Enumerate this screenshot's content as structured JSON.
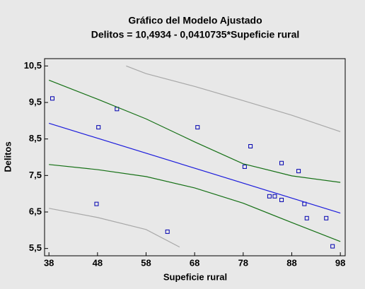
{
  "chart_data": {
    "type": "scatter",
    "title": "Gráfico del Modelo Ajustado",
    "subtitle": "Delitos = 10,4934 - 0,0410735*Supeficie rural",
    "x_label": "Supeficie rural",
    "y_label": "Delitos",
    "xlim": [
      37.1,
      99
    ],
    "ylim": [
      5.3,
      10.7
    ],
    "xticks": [
      38,
      48,
      58,
      68,
      78,
      88,
      98
    ],
    "yticks": [
      {
        "value": 5.5,
        "label": "5,5"
      },
      {
        "value": 6.5,
        "label": "6,5"
      },
      {
        "value": 7.5,
        "label": "7,5"
      },
      {
        "value": 8.5,
        "label": "8,5"
      },
      {
        "value": 9.5,
        "label": "9,5"
      },
      {
        "value": 10.5,
        "label": "10,5"
      }
    ],
    "series": [
      {
        "mark": "square",
        "color": "#0000b0",
        "x": [
          38.7,
          48.2,
          52.0,
          68.6,
          79.5,
          78.3,
          85.9,
          89.4,
          47.8,
          83.4,
          84.5,
          85.9,
          90.6,
          91.1,
          95.1,
          62.4,
          96.4
        ],
        "values": [
          9.61,
          8.82,
          9.32,
          8.82,
          8.3,
          7.74,
          7.84,
          7.62,
          6.72,
          6.93,
          6.93,
          6.83,
          6.72,
          6.33,
          6.33,
          5.96,
          5.56
        ]
      },
      {
        "mark": "line",
        "color": "#1c1cdc",
        "x": [
          38,
          98
        ],
        "values": [
          8.93,
          6.47
        ]
      },
      {
        "mark": "line",
        "color": "#157015",
        "x": [
          38,
          48,
          58,
          68,
          78,
          88,
          98
        ],
        "values": [
          10.11,
          9.59,
          9.05,
          8.42,
          7.82,
          7.49,
          7.31
        ]
      },
      {
        "mark": "line",
        "color": "#157015",
        "x": [
          38,
          48,
          58,
          68,
          78,
          88,
          98
        ],
        "values": [
          7.8,
          7.66,
          7.47,
          7.16,
          6.74,
          6.21,
          5.69
        ]
      },
      {
        "mark": "line",
        "color": "#a8a8a8",
        "x": [
          53.9,
          58,
          68,
          78,
          88,
          98
        ],
        "values": [
          10.5,
          10.29,
          9.94,
          9.55,
          9.15,
          8.7
        ]
      },
      {
        "mark": "line",
        "color": "#a8a8a8",
        "x": [
          38,
          48,
          58,
          64.9
        ],
        "values": [
          6.6,
          6.35,
          6.02,
          5.54
        ]
      }
    ]
  }
}
